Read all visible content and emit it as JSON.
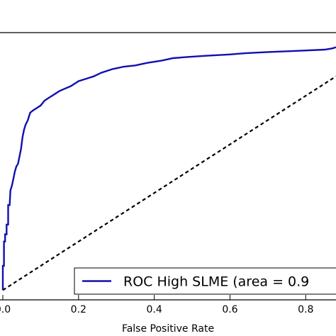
{
  "chart_data": {
    "type": "line",
    "title": "",
    "xlabel": "False Positive Rate",
    "ylabel": "",
    "xlim": [
      0.0,
      0.88
    ],
    "ylim": [
      -0.04,
      1.06
    ],
    "x_ticks": [
      0.0,
      0.2,
      0.4,
      0.6,
      0.8
    ],
    "x_tick_labels": [
      "0.0",
      "0.2",
      "0.4",
      "0.6",
      "0.8"
    ],
    "grid": false,
    "legend_position": "bottom-right",
    "series": [
      {
        "name": "ROC  High SLME (area = 0.9",
        "color": "#1010b0",
        "style": "solid",
        "points": [
          [
            0.0,
            0.0
          ],
          [
            0.0,
            0.1
          ],
          [
            0.003,
            0.1
          ],
          [
            0.003,
            0.2
          ],
          [
            0.006,
            0.2
          ],
          [
            0.006,
            0.23
          ],
          [
            0.01,
            0.23
          ],
          [
            0.01,
            0.27
          ],
          [
            0.014,
            0.27
          ],
          [
            0.014,
            0.35
          ],
          [
            0.018,
            0.35
          ],
          [
            0.02,
            0.41
          ],
          [
            0.024,
            0.43
          ],
          [
            0.028,
            0.46
          ],
          [
            0.032,
            0.49
          ],
          [
            0.036,
            0.51
          ],
          [
            0.04,
            0.52
          ],
          [
            0.044,
            0.55
          ],
          [
            0.048,
            0.58
          ],
          [
            0.052,
            0.63
          ],
          [
            0.056,
            0.66
          ],
          [
            0.06,
            0.68
          ],
          [
            0.066,
            0.7
          ],
          [
            0.072,
            0.73
          ],
          [
            0.08,
            0.74
          ],
          [
            0.09,
            0.75
          ],
          [
            0.1,
            0.76
          ],
          [
            0.11,
            0.78
          ],
          [
            0.12,
            0.79
          ],
          [
            0.13,
            0.8
          ],
          [
            0.14,
            0.81
          ],
          [
            0.15,
            0.82
          ],
          [
            0.165,
            0.83
          ],
          [
            0.18,
            0.84
          ],
          [
            0.2,
            0.86
          ],
          [
            0.22,
            0.87
          ],
          [
            0.24,
            0.88
          ],
          [
            0.26,
            0.895
          ],
          [
            0.29,
            0.91
          ],
          [
            0.32,
            0.92
          ],
          [
            0.35,
            0.925
          ],
          [
            0.38,
            0.935
          ],
          [
            0.42,
            0.945
          ],
          [
            0.45,
            0.955
          ],
          [
            0.49,
            0.96
          ],
          [
            0.54,
            0.965
          ],
          [
            0.6,
            0.97
          ],
          [
            0.64,
            0.975
          ],
          [
            0.7,
            0.98
          ],
          [
            0.78,
            0.985
          ],
          [
            0.85,
            0.99
          ],
          [
            0.87,
            0.995
          ],
          [
            0.88,
            1.0
          ]
        ]
      },
      {
        "name": "",
        "color": "#000000",
        "style": "dashed",
        "points": [
          [
            0.0,
            0.0
          ],
          [
            0.88,
            0.88
          ]
        ]
      }
    ]
  }
}
